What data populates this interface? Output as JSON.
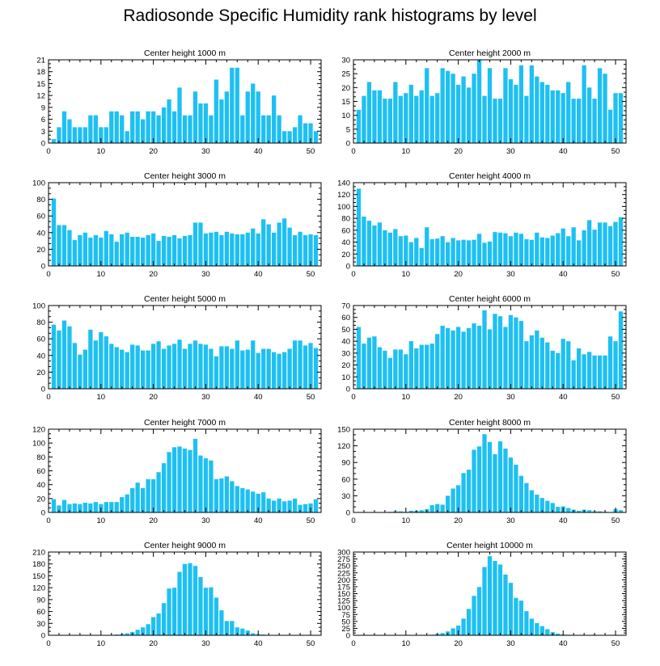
{
  "title": "Radiosonde Specific Humidity rank histograms by level",
  "colors": {
    "bar": "#1ec0f2",
    "axis": "#000000"
  },
  "chart_data": [
    {
      "type": "bar",
      "title": "Center height 1000 m",
      "xlim": [
        0,
        52
      ],
      "ylim": [
        0,
        21
      ],
      "xticks": [
        0,
        10,
        20,
        30,
        40,
        50
      ],
      "yticks": [
        0,
        3,
        6,
        9,
        12,
        15,
        18,
        21
      ],
      "x": [
        1,
        2,
        3,
        4,
        5,
        6,
        7,
        8,
        9,
        10,
        11,
        12,
        13,
        14,
        15,
        16,
        17,
        18,
        19,
        20,
        21,
        22,
        23,
        24,
        25,
        26,
        27,
        28,
        29,
        30,
        31,
        32,
        33,
        34,
        35,
        36,
        37,
        38,
        39,
        40,
        41,
        42,
        43,
        44,
        45,
        46,
        47,
        48,
        49,
        50,
        51
      ],
      "values": [
        1,
        4,
        8,
        6,
        4,
        4,
        4,
        7,
        7,
        4,
        4,
        8,
        8,
        7,
        3,
        8,
        8,
        6,
        8,
        8,
        7,
        9,
        11,
        8,
        14,
        7,
        7,
        13,
        10,
        10,
        7,
        16,
        11,
        13,
        19,
        19,
        7,
        13,
        15,
        13,
        7,
        7,
        12,
        7,
        3,
        3,
        4,
        7,
        5,
        5,
        3
      ]
    },
    {
      "type": "bar",
      "title": "Center height 2000 m",
      "xlim": [
        0,
        52
      ],
      "ylim": [
        0,
        30
      ],
      "xticks": [
        0,
        10,
        20,
        30,
        40,
        50
      ],
      "yticks": [
        0,
        5,
        10,
        15,
        20,
        25,
        30
      ],
      "x": [
        1,
        2,
        3,
        4,
        5,
        6,
        7,
        8,
        9,
        10,
        11,
        12,
        13,
        14,
        15,
        16,
        17,
        18,
        19,
        20,
        21,
        22,
        23,
        24,
        25,
        26,
        27,
        28,
        29,
        30,
        31,
        32,
        33,
        34,
        35,
        36,
        37,
        38,
        39,
        40,
        41,
        42,
        43,
        44,
        45,
        46,
        47,
        48,
        49,
        50,
        51
      ],
      "values": [
        12,
        17,
        22,
        19,
        19,
        16,
        16,
        22,
        17,
        18,
        21,
        17,
        19,
        27,
        17,
        18,
        27,
        26,
        25,
        21,
        24,
        20,
        25,
        30,
        17,
        27,
        16,
        16,
        27,
        23,
        21,
        28,
        17,
        28,
        24,
        22,
        21,
        19,
        19,
        18,
        22,
        16,
        16,
        28,
        20,
        16,
        27,
        25,
        12,
        18,
        18
      ]
    },
    {
      "type": "bar",
      "title": "Center height 3000 m",
      "xlim": [
        0,
        52
      ],
      "ylim": [
        0,
        100
      ],
      "xticks": [
        0,
        10,
        20,
        30,
        40,
        50
      ],
      "yticks": [
        0,
        20,
        40,
        60,
        80,
        100
      ],
      "x": [
        1,
        2,
        3,
        4,
        5,
        6,
        7,
        8,
        9,
        10,
        11,
        12,
        13,
        14,
        15,
        16,
        17,
        18,
        19,
        20,
        21,
        22,
        23,
        24,
        25,
        26,
        27,
        28,
        29,
        30,
        31,
        32,
        33,
        34,
        35,
        36,
        37,
        38,
        39,
        40,
        41,
        42,
        43,
        44,
        45,
        46,
        47,
        48,
        49,
        50,
        51
      ],
      "values": [
        81,
        49,
        49,
        43,
        31,
        37,
        40,
        34,
        37,
        34,
        42,
        38,
        29,
        38,
        40,
        35,
        35,
        34,
        37,
        39,
        30,
        36,
        35,
        37,
        33,
        36,
        37,
        52,
        52,
        39,
        40,
        41,
        37,
        41,
        39,
        38,
        38,
        40,
        45,
        39,
        56,
        50,
        40,
        52,
        57,
        46,
        37,
        41,
        37,
        38,
        37
      ]
    },
    {
      "type": "bar",
      "title": "Center height 4000 m",
      "xlim": [
        0,
        52
      ],
      "ylim": [
        0,
        140
      ],
      "xticks": [
        0,
        10,
        20,
        30,
        40,
        50
      ],
      "yticks": [
        0,
        20,
        40,
        60,
        80,
        100,
        120,
        140
      ],
      "x": [
        1,
        2,
        3,
        4,
        5,
        6,
        7,
        8,
        9,
        10,
        11,
        12,
        13,
        14,
        15,
        16,
        17,
        18,
        19,
        20,
        21,
        22,
        23,
        24,
        25,
        26,
        27,
        28,
        29,
        30,
        31,
        32,
        33,
        34,
        35,
        36,
        37,
        38,
        39,
        40,
        41,
        42,
        43,
        44,
        45,
        46,
        47,
        48,
        49,
        50,
        51
      ],
      "values": [
        130,
        83,
        76,
        68,
        73,
        60,
        56,
        62,
        50,
        51,
        40,
        47,
        30,
        65,
        45,
        46,
        50,
        40,
        47,
        43,
        44,
        43,
        44,
        54,
        39,
        41,
        57,
        56,
        55,
        50,
        56,
        54,
        45,
        44,
        56,
        48,
        47,
        51,
        55,
        63,
        50,
        65,
        43,
        60,
        77,
        61,
        73,
        73,
        67,
        74,
        82
      ]
    },
    {
      "type": "bar",
      "title": "Center height 5000 m",
      "xlim": [
        0,
        52
      ],
      "ylim": [
        0,
        100
      ],
      "xticks": [
        0,
        10,
        20,
        30,
        40,
        50
      ],
      "yticks": [
        0,
        20,
        40,
        60,
        80,
        100
      ],
      "x": [
        1,
        2,
        3,
        4,
        5,
        6,
        7,
        8,
        9,
        10,
        11,
        12,
        13,
        14,
        15,
        16,
        17,
        18,
        19,
        20,
        21,
        22,
        23,
        24,
        25,
        26,
        27,
        28,
        29,
        30,
        31,
        32,
        33,
        34,
        35,
        36,
        37,
        38,
        39,
        40,
        41,
        42,
        43,
        44,
        45,
        46,
        47,
        48,
        49,
        50,
        51
      ],
      "values": [
        77,
        70,
        82,
        75,
        55,
        41,
        47,
        71,
        58,
        68,
        63,
        54,
        50,
        47,
        44,
        53,
        52,
        46,
        46,
        54,
        57,
        48,
        52,
        54,
        59,
        48,
        54,
        58,
        54,
        53,
        48,
        39,
        51,
        51,
        48,
        58,
        46,
        47,
        58,
        43,
        48,
        48,
        44,
        42,
        44,
        48,
        58,
        58,
        52,
        55,
        49
      ]
    },
    {
      "type": "bar",
      "title": "Center height 6000 m",
      "xlim": [
        0,
        52
      ],
      "ylim": [
        0,
        70
      ],
      "xticks": [
        0,
        10,
        20,
        30,
        40,
        50
      ],
      "yticks": [
        0,
        10,
        20,
        30,
        40,
        50,
        60,
        70
      ],
      "x": [
        1,
        2,
        3,
        4,
        5,
        6,
        7,
        8,
        9,
        10,
        11,
        12,
        13,
        14,
        15,
        16,
        17,
        18,
        19,
        20,
        21,
        22,
        23,
        24,
        25,
        26,
        27,
        28,
        29,
        30,
        31,
        32,
        33,
        34,
        35,
        36,
        37,
        38,
        39,
        40,
        41,
        42,
        43,
        44,
        45,
        46,
        47,
        48,
        49,
        50,
        51
      ],
      "values": [
        52,
        38,
        43,
        44,
        35,
        32,
        26,
        33,
        33,
        29,
        40,
        34,
        37,
        37,
        38,
        46,
        53,
        51,
        49,
        52,
        48,
        51,
        55,
        53,
        66,
        50,
        63,
        61,
        52,
        62,
        60,
        57,
        40,
        45,
        49,
        43,
        39,
        32,
        30,
        42,
        40,
        24,
        34,
        29,
        31,
        28,
        28,
        28,
        44,
        40,
        65
      ]
    },
    {
      "type": "bar",
      "title": "Center height 7000 m",
      "xlim": [
        0,
        52
      ],
      "ylim": [
        0,
        120
      ],
      "xticks": [
        0,
        10,
        20,
        30,
        40,
        50
      ],
      "yticks": [
        0,
        20,
        40,
        60,
        80,
        100,
        120
      ],
      "x": [
        1,
        2,
        3,
        4,
        5,
        6,
        7,
        8,
        9,
        10,
        11,
        12,
        13,
        14,
        15,
        16,
        17,
        18,
        19,
        20,
        21,
        22,
        23,
        24,
        25,
        26,
        27,
        28,
        29,
        30,
        31,
        32,
        33,
        34,
        35,
        36,
        37,
        38,
        39,
        40,
        41,
        42,
        43,
        44,
        45,
        46,
        47,
        48,
        49,
        50,
        51
      ],
      "values": [
        19,
        10,
        18,
        12,
        13,
        12,
        14,
        13,
        15,
        12,
        15,
        15,
        15,
        22,
        26,
        35,
        43,
        35,
        48,
        48,
        58,
        71,
        87,
        94,
        95,
        92,
        90,
        106,
        82,
        78,
        75,
        48,
        49,
        52,
        45,
        38,
        35,
        33,
        30,
        27,
        29,
        20,
        17,
        20,
        16,
        17,
        20,
        11,
        12,
        13,
        19
      ]
    },
    {
      "type": "bar",
      "title": "Center height 8000 m",
      "xlim": [
        0,
        52
      ],
      "ylim": [
        0,
        150
      ],
      "xticks": [
        0,
        10,
        20,
        30,
        40,
        50
      ],
      "yticks": [
        0,
        30,
        60,
        90,
        120,
        150
      ],
      "x": [
        1,
        2,
        3,
        4,
        5,
        6,
        7,
        8,
        9,
        10,
        11,
        12,
        13,
        14,
        15,
        16,
        17,
        18,
        19,
        20,
        21,
        22,
        23,
        24,
        25,
        26,
        27,
        28,
        29,
        30,
        31,
        32,
        33,
        34,
        35,
        36,
        37,
        38,
        39,
        40,
        41,
        42,
        43,
        44,
        45,
        46,
        47,
        48,
        49,
        50,
        51
      ],
      "values": [
        0,
        0,
        0,
        0,
        0,
        0,
        1,
        2,
        2,
        1,
        3,
        3,
        4,
        6,
        13,
        15,
        14,
        30,
        43,
        49,
        71,
        77,
        113,
        119,
        141,
        127,
        105,
        128,
        115,
        99,
        86,
        66,
        53,
        40,
        32,
        26,
        21,
        17,
        10,
        11,
        8,
        5,
        3,
        5,
        4,
        2,
        2,
        1,
        0,
        6,
        4
      ]
    },
    {
      "type": "bar",
      "title": "Center height 9000 m",
      "xlim": [
        0,
        52
      ],
      "ylim": [
        0,
        210
      ],
      "xticks": [
        0,
        10,
        20,
        30,
        40,
        50
      ],
      "yticks": [
        0,
        30,
        60,
        90,
        120,
        150,
        180,
        210
      ],
      "x": [
        1,
        2,
        3,
        4,
        5,
        6,
        7,
        8,
        9,
        10,
        11,
        12,
        13,
        14,
        15,
        16,
        17,
        18,
        19,
        20,
        21,
        22,
        23,
        24,
        25,
        26,
        27,
        28,
        29,
        30,
        31,
        32,
        33,
        34,
        35,
        36,
        37,
        38,
        39,
        40,
        41,
        42,
        43,
        44,
        45,
        46,
        47,
        48,
        49,
        50,
        51
      ],
      "values": [
        0,
        0,
        0,
        0,
        0,
        0,
        0,
        0,
        0,
        0,
        0,
        1,
        2,
        3,
        5,
        8,
        14,
        20,
        28,
        46,
        55,
        81,
        118,
        120,
        160,
        180,
        182,
        175,
        147,
        120,
        121,
        95,
        63,
        36,
        36,
        20,
        17,
        12,
        5,
        3,
        2,
        1,
        1,
        0,
        0,
        0,
        0,
        0,
        0,
        0,
        0
      ]
    },
    {
      "type": "bar",
      "title": "Center height 10000 m",
      "xlim": [
        0,
        52
      ],
      "ylim": [
        0,
        300
      ],
      "xticks": [
        0,
        10,
        20,
        30,
        40,
        50
      ],
      "yticks": [
        0,
        25,
        50,
        75,
        100,
        125,
        150,
        175,
        200,
        225,
        250,
        275,
        300
      ],
      "x": [
        1,
        2,
        3,
        4,
        5,
        6,
        7,
        8,
        9,
        10,
        11,
        12,
        13,
        14,
        15,
        16,
        17,
        18,
        19,
        20,
        21,
        22,
        23,
        24,
        25,
        26,
        27,
        28,
        29,
        30,
        31,
        32,
        33,
        34,
        35,
        36,
        37,
        38,
        39,
        40,
        41,
        42,
        43,
        44,
        45,
        46,
        47,
        48,
        49,
        50,
        51
      ],
      "values": [
        0,
        0,
        0,
        0,
        0,
        0,
        0,
        0,
        0,
        0,
        0,
        0,
        0,
        0,
        2,
        5,
        8,
        14,
        25,
        35,
        60,
        95,
        142,
        174,
        246,
        285,
        268,
        255,
        219,
        189,
        135,
        125,
        87,
        60,
        44,
        33,
        22,
        11,
        6,
        3,
        2,
        1,
        1,
        1,
        0,
        2,
        0,
        1,
        0,
        0,
        0
      ]
    }
  ]
}
